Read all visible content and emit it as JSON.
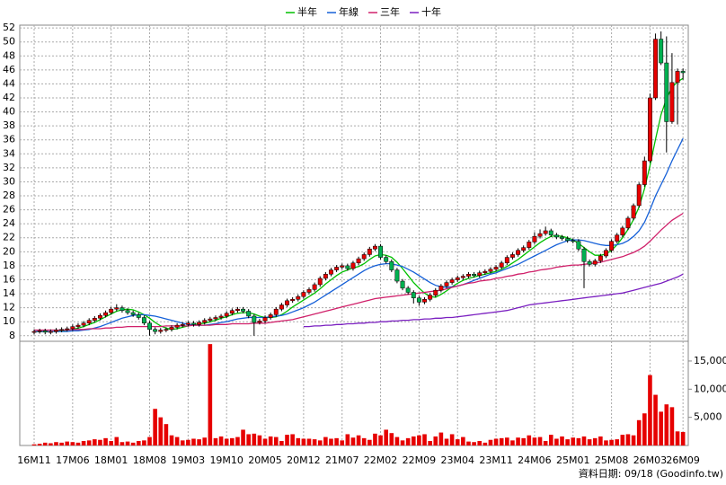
{
  "chart_data": {
    "type": "candlestick",
    "categories": [
      "16M11",
      null,
      null,
      null,
      null,
      null,
      null,
      "17M06",
      null,
      null,
      null,
      null,
      null,
      null,
      "18M01",
      null,
      null,
      null,
      null,
      null,
      null,
      "18M08",
      null,
      null,
      null,
      null,
      null,
      null,
      "19M03",
      null,
      null,
      null,
      null,
      null,
      null,
      "19M10",
      null,
      null,
      null,
      null,
      null,
      null,
      "20M05",
      null,
      null,
      null,
      null,
      null,
      null,
      "20M12",
      null,
      null,
      null,
      null,
      null,
      null,
      "21M07",
      null,
      null,
      null,
      null,
      null,
      null,
      "22M02",
      null,
      null,
      null,
      null,
      null,
      null,
      "22M09",
      null,
      null,
      null,
      null,
      null,
      null,
      "23M04",
      null,
      null,
      null,
      null,
      null,
      null,
      "23M11",
      null,
      null,
      null,
      null,
      null,
      null,
      "24M06",
      null,
      null,
      null,
      null,
      null,
      null,
      "25M01",
      null,
      null,
      null,
      null,
      null,
      null,
      "25M08",
      null,
      null,
      null,
      null,
      null,
      null,
      "26M03",
      null,
      null,
      null,
      null,
      null,
      "26M09"
    ],
    "open": [
      8.5,
      8.6,
      8.7,
      8.5,
      8.6,
      8.8,
      8.9,
      9.0,
      9.3,
      9.5,
      9.8,
      10.2,
      10.5,
      10.9,
      11.3,
      11.8,
      12.0,
      11.6,
      11.3,
      11.0,
      10.6,
      9.8,
      8.9,
      8.6,
      8.8,
      8.9,
      9.2,
      9.5,
      9.6,
      9.8,
      9.6,
      9.9,
      10.2,
      10.4,
      10.6,
      10.8,
      11.2,
      11.6,
      11.8,
      11.5,
      10.8,
      9.9,
      10.1,
      10.6,
      11.0,
      11.8,
      12.4,
      13.0,
      13.2,
      13.6,
      14.2,
      14.6,
      15.3,
      16.2,
      16.8,
      17.4,
      17.8,
      18.0,
      17.6,
      18.4,
      19.0,
      19.6,
      20.4,
      20.8,
      19.2,
      18.6,
      17.4,
      15.8,
      14.8,
      14.2,
      13.4,
      12.8,
      13.2,
      13.8,
      14.5,
      15.1,
      15.6,
      16.0,
      16.3,
      16.5,
      16.8,
      16.6,
      17.0,
      17.2,
      17.5,
      17.8,
      18.4,
      19.2,
      19.6,
      20.2,
      20.6,
      21.4,
      22.2,
      22.6,
      23.0,
      22.4,
      22.1,
      21.9,
      21.6,
      21.5,
      20.4,
      18.6,
      18.2,
      18.7,
      19.4,
      20.2,
      21.5,
      22.4,
      23.4,
      24.8,
      26.6,
      29.6,
      33.0,
      42.0,
      50.4,
      47.0,
      38.6,
      44.2,
      45.8
    ],
    "high": [
      8.9,
      9.0,
      9.0,
      8.9,
      9.1,
      9.2,
      9.3,
      9.6,
      9.8,
      10.1,
      10.5,
      10.8,
      11.2,
      11.6,
      12.1,
      12.5,
      12.3,
      11.9,
      11.6,
      11.3,
      10.9,
      10.1,
      9.2,
      9.1,
      9.2,
      9.5,
      9.8,
      9.9,
      10.1,
      10.1,
      10.2,
      10.5,
      10.7,
      10.9,
      11.1,
      11.5,
      11.9,
      12.1,
      12.1,
      11.8,
      11.1,
      10.4,
      10.9,
      11.3,
      12.1,
      12.7,
      13.3,
      13.5,
      13.9,
      14.5,
      14.9,
      15.6,
      16.5,
      17.1,
      17.7,
      18.1,
      18.3,
      18.3,
      18.7,
      19.3,
      19.9,
      20.7,
      21.1,
      21.1,
      19.5,
      18.9,
      17.7,
      16.1,
      15.1,
      14.5,
      13.7,
      13.5,
      14.1,
      14.8,
      15.4,
      15.9,
      16.3,
      16.6,
      16.8,
      17.1,
      17.1,
      17.3,
      17.5,
      17.8,
      18.1,
      18.7,
      19.5,
      19.9,
      20.5,
      20.9,
      21.7,
      22.8,
      23.2,
      23.6,
      23.3,
      22.7,
      22.4,
      22.2,
      21.9,
      21.8,
      20.7,
      18.9,
      19.0,
      19.7,
      20.5,
      21.8,
      22.7,
      23.7,
      25.1,
      26.9,
      29.9,
      33.6,
      42.6,
      51.2,
      51.5,
      50.8,
      48.4,
      46.2,
      46.2
    ],
    "low": [
      8.2,
      8.3,
      8.2,
      8.2,
      8.3,
      8.5,
      8.6,
      8.7,
      9.0,
      9.2,
      9.5,
      9.9,
      10.2,
      10.6,
      11.0,
      11.5,
      11.3,
      11.0,
      10.7,
      10.3,
      9.5,
      8.0,
      8.2,
      8.3,
      8.5,
      8.6,
      8.9,
      9.2,
      9.3,
      9.3,
      9.3,
      9.6,
      9.9,
      10.1,
      10.3,
      10.5,
      10.9,
      11.3,
      11.2,
      10.5,
      8.0,
      9.6,
      9.8,
      10.3,
      10.7,
      11.5,
      12.1,
      12.7,
      12.9,
      13.3,
      13.9,
      14.3,
      15.0,
      15.9,
      16.5,
      17.1,
      17.5,
      17.3,
      17.3,
      18.1,
      18.7,
      19.3,
      20.1,
      18.9,
      18.3,
      17.1,
      15.5,
      14.5,
      13.9,
      12.6,
      12.3,
      12.5,
      12.9,
      13.5,
      14.2,
      14.8,
      15.3,
      15.7,
      16.0,
      16.2,
      16.3,
      16.3,
      16.7,
      16.9,
      17.2,
      17.5,
      18.1,
      18.9,
      19.3,
      19.9,
      20.3,
      21.1,
      21.9,
      22.3,
      22.1,
      21.8,
      21.6,
      21.3,
      21.2,
      20.1,
      14.8,
      17.9,
      17.9,
      18.4,
      19.1,
      19.9,
      21.2,
      22.1,
      23.1,
      24.5,
      26.3,
      29.3,
      32.7,
      41.7,
      46.7,
      34.2,
      38.3,
      38.2,
      44.6
    ],
    "close": [
      8.6,
      8.7,
      8.5,
      8.6,
      8.8,
      8.9,
      9.0,
      9.3,
      9.5,
      9.8,
      10.2,
      10.5,
      10.9,
      11.3,
      11.8,
      12.0,
      11.6,
      11.3,
      11.0,
      10.6,
      9.8,
      8.9,
      8.6,
      8.8,
      8.9,
      9.2,
      9.5,
      9.6,
      9.8,
      9.6,
      9.9,
      10.2,
      10.4,
      10.6,
      10.8,
      11.2,
      11.6,
      11.8,
      11.5,
      10.8,
      9.9,
      10.1,
      10.6,
      11.0,
      11.8,
      12.4,
      13.0,
      13.2,
      13.6,
      14.2,
      14.6,
      15.3,
      16.2,
      16.8,
      17.4,
      17.8,
      18.0,
      17.6,
      18.4,
      19.0,
      19.6,
      20.4,
      20.8,
      19.2,
      18.6,
      17.4,
      15.8,
      14.8,
      14.2,
      13.4,
      12.8,
      13.2,
      13.8,
      14.5,
      15.1,
      15.6,
      16.0,
      16.3,
      16.5,
      16.8,
      16.6,
      17.0,
      17.2,
      17.5,
      17.8,
      18.4,
      19.2,
      19.6,
      20.2,
      20.6,
      21.4,
      22.2,
      22.6,
      23.0,
      22.4,
      22.1,
      21.9,
      21.6,
      21.5,
      20.4,
      18.6,
      18.2,
      18.7,
      19.4,
      20.2,
      21.5,
      22.4,
      23.4,
      24.8,
      26.6,
      29.6,
      33.0,
      42.0,
      50.4,
      47.0,
      38.6,
      44.2,
      45.8,
      45.6
    ],
    "up_color": "#e60000",
    "down_color": "#00b050",
    "series": [
      {
        "name": "半年",
        "color": "#00c000",
        "values": [
          8.6,
          8.6,
          8.6,
          8.6,
          8.6,
          8.7,
          8.8,
          8.9,
          9.1,
          9.3,
          9.6,
          9.9,
          10.3,
          10.7,
          11.1,
          11.5,
          11.7,
          11.8,
          11.7,
          11.4,
          11.0,
          10.5,
          9.9,
          9.4,
          9.1,
          8.9,
          9.0,
          9.2,
          9.4,
          9.6,
          9.7,
          9.8,
          10.0,
          10.2,
          10.5,
          10.7,
          11.0,
          11.2,
          11.3,
          11.3,
          11.1,
          10.8,
          10.6,
          10.6,
          10.7,
          11.0,
          11.5,
          12.1,
          12.6,
          13.1,
          13.6,
          14.1,
          14.7,
          15.4,
          16.0,
          16.6,
          17.1,
          17.4,
          17.7,
          17.9,
          18.3,
          18.9,
          19.4,
          19.6,
          19.5,
          19.2,
          18.5,
          17.6,
          16.6,
          15.6,
          14.8,
          14.1,
          13.6,
          13.5,
          13.9,
          14.4,
          15.0,
          15.5,
          15.9,
          16.2,
          16.4,
          16.6,
          16.8,
          17.0,
          17.2,
          17.5,
          17.9,
          18.4,
          18.9,
          19.5,
          20.1,
          20.7,
          21.3,
          21.8,
          22.2,
          22.3,
          22.2,
          22.0,
          21.7,
          21.2,
          20.6,
          20.0,
          19.5,
          19.5,
          19.7,
          20.2,
          21.0,
          22.0,
          23.2,
          24.6,
          26.4,
          29.0,
          32.3,
          36.1,
          39.6,
          41.9,
          43.5,
          44.3,
          44.8
        ]
      },
      {
        "name": "年線",
        "color": "#1560d8",
        "values": [
          8.6,
          8.6,
          8.6,
          8.6,
          8.6,
          8.6,
          8.6,
          8.7,
          8.7,
          8.8,
          8.9,
          9.1,
          9.3,
          9.6,
          9.9,
          10.2,
          10.5,
          10.7,
          10.9,
          11.0,
          11.0,
          10.9,
          10.8,
          10.6,
          10.4,
          10.2,
          10.0,
          9.8,
          9.6,
          9.5,
          9.5,
          9.5,
          9.6,
          9.7,
          9.9,
          10.0,
          10.2,
          10.4,
          10.5,
          10.6,
          10.6,
          10.6,
          10.6,
          10.7,
          10.8,
          10.9,
          11.1,
          11.4,
          11.7,
          12.0,
          12.4,
          12.8,
          13.3,
          13.8,
          14.3,
          14.8,
          15.3,
          15.8,
          16.3,
          16.8,
          17.3,
          17.7,
          18.0,
          18.2,
          18.3,
          18.3,
          18.1,
          17.9,
          17.5,
          17.1,
          16.6,
          16.1,
          15.6,
          15.2,
          15.0,
          14.9,
          15.0,
          15.1,
          15.3,
          15.6,
          15.9,
          16.2,
          16.5,
          16.8,
          17.0,
          17.3,
          17.6,
          17.9,
          18.2,
          18.6,
          19.0,
          19.4,
          19.8,
          20.2,
          20.6,
          21.0,
          21.3,
          21.6,
          21.7,
          21.7,
          21.6,
          21.4,
          21.2,
          21.0,
          20.9,
          20.9,
          21.0,
          21.2,
          21.6,
          22.2,
          23.0,
          24.2,
          26.0,
          28.0,
          29.6,
          31.2,
          33.0,
          34.6,
          36.2
        ]
      },
      {
        "name": "三年",
        "color": "#d0206a",
        "values": [
          8.8,
          8.8,
          8.8,
          8.8,
          8.8,
          8.8,
          8.8,
          8.9,
          8.9,
          8.9,
          9.0,
          9.0,
          9.0,
          9.1,
          9.1,
          9.2,
          9.2,
          9.3,
          9.3,
          9.3,
          9.3,
          9.3,
          9.3,
          9.3,
          9.4,
          9.4,
          9.4,
          9.4,
          9.4,
          9.5,
          9.5,
          9.5,
          9.5,
          9.6,
          9.6,
          9.6,
          9.7,
          9.7,
          9.7,
          9.7,
          9.8,
          9.8,
          9.8,
          9.9,
          10.0,
          10.1,
          10.2,
          10.3,
          10.5,
          10.7,
          10.9,
          11.1,
          11.3,
          11.5,
          11.7,
          11.9,
          12.1,
          12.3,
          12.5,
          12.7,
          12.9,
          13.1,
          13.3,
          13.4,
          13.5,
          13.6,
          13.7,
          13.8,
          13.9,
          14.0,
          14.1,
          14.2,
          14.3,
          14.4,
          14.5,
          14.7,
          14.9,
          15.1,
          15.3,
          15.5,
          15.6,
          15.8,
          15.9,
          16.0,
          16.2,
          16.3,
          16.5,
          16.6,
          16.8,
          16.9,
          17.1,
          17.2,
          17.4,
          17.5,
          17.6,
          17.8,
          17.9,
          18.0,
          18.1,
          18.1,
          18.2,
          18.3,
          18.4,
          18.5,
          18.7,
          18.9,
          19.1,
          19.3,
          19.6,
          19.9,
          20.3,
          20.8,
          21.5,
          22.3,
          23.1,
          23.8,
          24.5,
          25.0,
          25.5
        ]
      },
      {
        "name": "十年",
        "color": "#7a1fc0",
        "values": [
          null,
          null,
          null,
          null,
          null,
          null,
          null,
          null,
          null,
          null,
          null,
          null,
          null,
          null,
          null,
          null,
          null,
          null,
          null,
          null,
          null,
          null,
          null,
          null,
          null,
          null,
          null,
          null,
          null,
          null,
          null,
          null,
          null,
          null,
          null,
          null,
          null,
          null,
          null,
          null,
          null,
          null,
          null,
          null,
          null,
          null,
          null,
          null,
          null,
          9.3,
          9.3,
          9.4,
          9.4,
          9.5,
          9.5,
          9.6,
          9.6,
          9.7,
          9.7,
          9.8,
          9.8,
          9.9,
          9.9,
          10.0,
          10.0,
          10.1,
          10.1,
          10.2,
          10.2,
          10.3,
          10.3,
          10.4,
          10.4,
          10.5,
          10.5,
          10.6,
          10.6,
          10.7,
          10.8,
          10.9,
          11.0,
          11.1,
          11.2,
          11.3,
          11.4,
          11.5,
          11.6,
          11.8,
          12.0,
          12.2,
          12.4,
          12.5,
          12.6,
          12.7,
          12.8,
          12.9,
          13.0,
          13.1,
          13.2,
          13.3,
          13.4,
          13.5,
          13.6,
          13.7,
          13.8,
          13.9,
          14.0,
          14.1,
          14.3,
          14.5,
          14.7,
          14.9,
          15.1,
          15.3,
          15.5,
          15.8,
          16.1,
          16.4,
          16.8
        ]
      }
    ],
    "ylim": [
      7.2,
      52.4
    ],
    "yticks": [
      8,
      10,
      12,
      14,
      16,
      18,
      20,
      22,
      24,
      26,
      28,
      30,
      32,
      34,
      36,
      38,
      40,
      42,
      44,
      46,
      48,
      50,
      52
    ],
    "grid": true,
    "volume": {
      "color": "#e60000",
      "ylim": [
        0,
        18500
      ],
      "yticks": [
        {
          "value": 5000,
          "label": "5,000"
        },
        {
          "value": 10000,
          "label": "10,000"
        },
        {
          "value": 15000,
          "label": "15,000"
        }
      ],
      "values": [
        200,
        300,
        500,
        400,
        600,
        500,
        700,
        600,
        500,
        800,
        900,
        1100,
        1000,
        1300,
        800,
        1500,
        600,
        700,
        500,
        800,
        900,
        1500,
        6500,
        5000,
        3800,
        1800,
        1500,
        900,
        1000,
        1200,
        1100,
        1400,
        18000,
        1300,
        1600,
        1200,
        1300,
        1500,
        2800,
        2000,
        2100,
        1800,
        1200,
        1600,
        1500,
        800,
        1900,
        2000,
        1300,
        1200,
        1200,
        1100,
        900,
        1500,
        1200,
        1300,
        900,
        2000,
        1400,
        1800,
        1300,
        1000,
        2100,
        1800,
        2800,
        2200,
        1500,
        900,
        1300,
        1600,
        1800,
        2000,
        800,
        1600,
        2300,
        1200,
        2000,
        1100,
        1500,
        700,
        600,
        800,
        500,
        1000,
        1200,
        1300,
        1400,
        900,
        1400,
        1300,
        1800,
        1400,
        1500,
        800,
        1900,
        1200,
        1600,
        1100,
        1400,
        1300,
        1600,
        1100,
        1300,
        1600,
        900,
        1000,
        1100,
        1900,
        2000,
        1800,
        4500,
        5700,
        12500,
        9000,
        6000,
        7300,
        6800,
        2500,
        2400
      ]
    },
    "source": "資料日期: 09/18 (Goodinfo.tw)"
  }
}
